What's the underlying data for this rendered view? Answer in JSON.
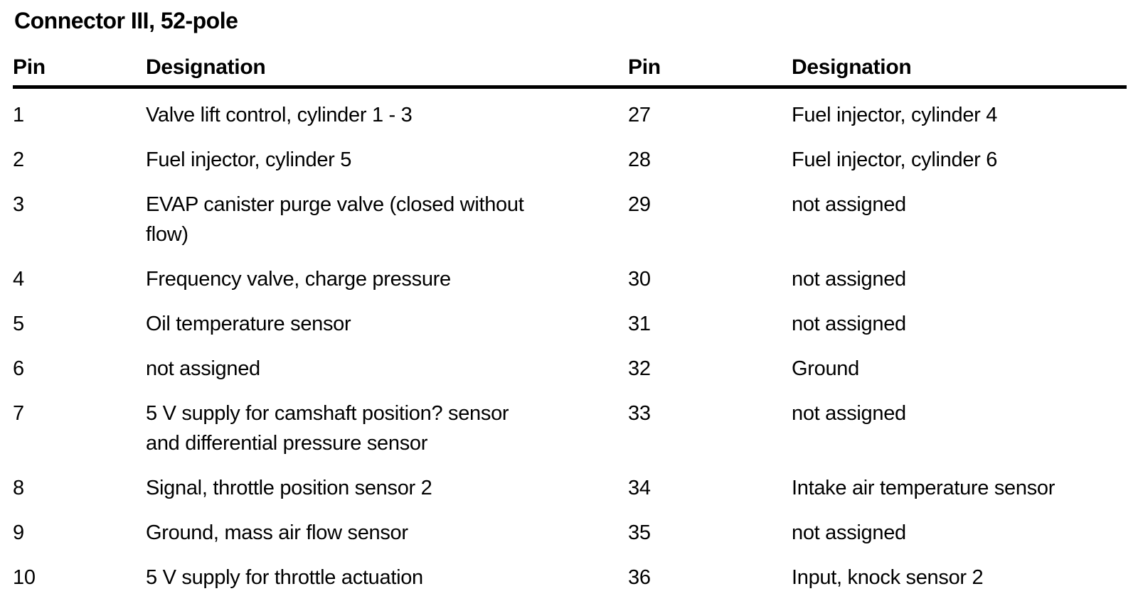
{
  "title": "Connector III, 52-pole",
  "table": {
    "header": {
      "pin_left": "Pin",
      "designation_left": "Designation",
      "pin_right": "Pin",
      "designation_right": "Designation"
    },
    "rows": [
      {
        "left_pin": "1",
        "left_designation": "Valve lift control, cylinder 1 - 3",
        "right_pin": "27",
        "right_designation": "Fuel injector, cylinder 4"
      },
      {
        "left_pin": "2",
        "left_designation": "Fuel injector, cylinder 5",
        "right_pin": "28",
        "right_designation": "Fuel injector, cylinder 6"
      },
      {
        "left_pin": "3",
        "left_designation": "EVAP canister purge valve (closed without\nflow)",
        "right_pin": "29",
        "right_designation": "not assigned"
      },
      {
        "left_pin": "4",
        "left_designation": "Frequency valve, charge pressure",
        "right_pin": "30",
        "right_designation": "not assigned"
      },
      {
        "left_pin": "5",
        "left_designation": "Oil temperature sensor",
        "right_pin": "31",
        "right_designation": "not assigned"
      },
      {
        "left_pin": "6",
        "left_designation": "not assigned",
        "right_pin": "32",
        "right_designation": "Ground"
      },
      {
        "left_pin": "7",
        "left_designation": "5 V supply for camshaft position? sensor\nand differential pressure sensor",
        "right_pin": "33",
        "right_designation": "not assigned"
      },
      {
        "left_pin": "8",
        "left_designation": "Signal, throttle position sensor 2",
        "right_pin": "34",
        "right_designation": "Intake air temperature sensor"
      },
      {
        "left_pin": "9",
        "left_designation": "Ground, mass air flow sensor",
        "right_pin": "35",
        "right_designation": "not assigned"
      },
      {
        "left_pin": "10",
        "left_designation": "5 V supply for throttle actuation",
        "right_pin": "36",
        "right_designation": "Input, knock sensor 2"
      }
    ]
  }
}
